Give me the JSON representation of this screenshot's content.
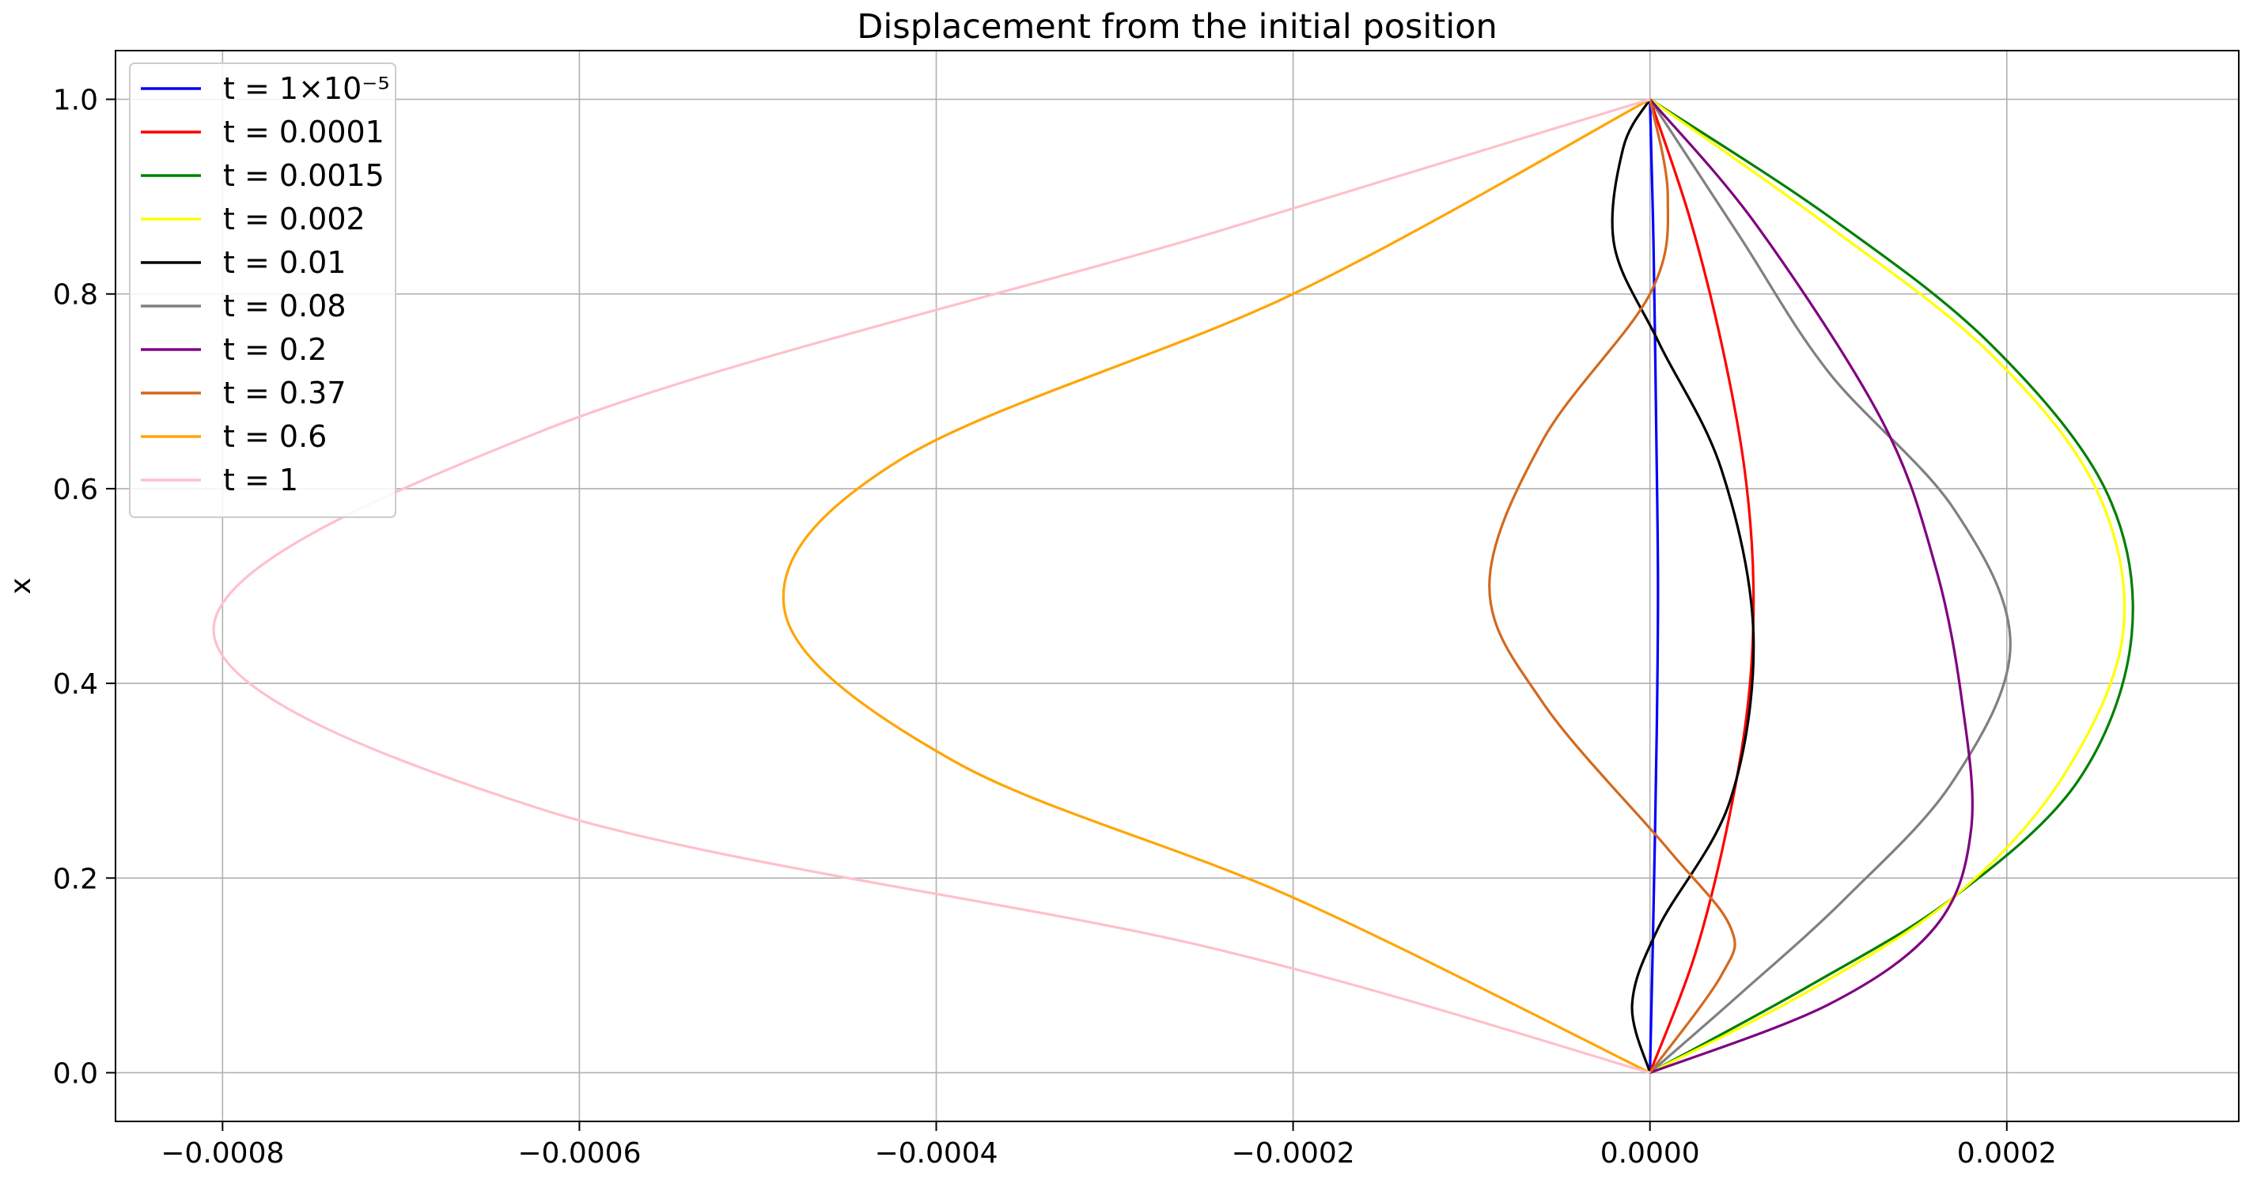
{
  "chart_data": {
    "type": "line",
    "title": "Displacement from the initial position",
    "xlabel": "",
    "ylabel": "x",
    "xlim": [
      -0.00086,
      0.00033
    ],
    "ylim": [
      -0.05,
      1.05
    ],
    "xticks": [
      -0.0008,
      -0.0006,
      -0.0004,
      -0.0002,
      0.0,
      0.0002
    ],
    "xtick_labels": [
      "−0.0008",
      "−0.0006",
      "−0.0004",
      "−0.0002",
      "0.0000",
      "0.0002"
    ],
    "yticks": [
      0.0,
      0.2,
      0.4,
      0.6,
      0.8,
      1.0
    ],
    "ytick_labels": [
      "0.0",
      "0.2",
      "0.4",
      "0.6",
      "0.8",
      "1.0"
    ],
    "grid": true,
    "legend_position": "top-left",
    "series": [
      {
        "name": "t = 1×10⁻⁵",
        "color": "#0000ff",
        "x": [
          0,
          1.8e-06,
          3.8e-06,
          4.5e-06,
          3.6e-06,
          2e-06,
          0
        ],
        "y": [
          0,
          0.15,
          0.35,
          0.5,
          0.65,
          0.85,
          1
        ]
      },
      {
        "name": "t = 0.0001",
        "color": "#ff0000",
        "x": [
          0,
          2.5e-05,
          4.3e-05,
          5.5e-05,
          5.8e-05,
          5.3e-05,
          4e-05,
          2.2e-05,
          0
        ],
        "y": [
          0,
          0.12,
          0.25,
          0.38,
          0.5,
          0.62,
          0.75,
          0.88,
          1
        ]
      },
      {
        "name": "t = 0.0015",
        "color": "#008000",
        "x": [
          0,
          9e-05,
          0.00017,
          0.00024,
          0.00027,
          0.000255,
          0.00019,
          0.0001,
          0
        ],
        "y": [
          0,
          0.09,
          0.18,
          0.3,
          0.45,
          0.6,
          0.75,
          0.88,
          1
        ]
      },
      {
        "name": "t = 0.002",
        "color": "#ffff00",
        "x": [
          0,
          9e-05,
          0.00017,
          0.00023,
          0.000265,
          0.00025,
          0.00019,
          0.0001,
          0
        ],
        "y": [
          0,
          0.085,
          0.18,
          0.3,
          0.45,
          0.6,
          0.74,
          0.87,
          1
        ]
      },
      {
        "name": "t = 0.01",
        "color": "#000000",
        "x": [
          0,
          -1e-05,
          5e-06,
          4.5e-05,
          5.8e-05,
          4e-05,
          5e-06,
          -2e-05,
          -1.5e-05,
          0
        ],
        "y": [
          0,
          0.07,
          0.15,
          0.28,
          0.45,
          0.62,
          0.75,
          0.85,
          0.95,
          1
        ]
      },
      {
        "name": "t = 0.08",
        "color": "#808080",
        "x": [
          0,
          5e-05,
          0.00011,
          0.00017,
          0.000202,
          0.00017,
          0.0001,
          5e-05,
          0
        ],
        "y": [
          0,
          0.08,
          0.18,
          0.3,
          0.44,
          0.58,
          0.72,
          0.86,
          1
        ]
      },
      {
        "name": "t = 0.2",
        "color": "#800080",
        "x": [
          0,
          0.0001,
          0.00016,
          0.00018,
          0.000175,
          0.00016,
          0.00013,
          6e-05,
          0
        ],
        "y": [
          0,
          0.07,
          0.15,
          0.25,
          0.38,
          0.52,
          0.67,
          0.87,
          1
        ]
      },
      {
        "name": "t = 0.37",
        "color": "#d2691e",
        "x": [
          0,
          4e-05,
          4.5e-05,
          1e-05,
          -6e-05,
          -9e-05,
          -6e-05,
          0,
          1e-05,
          0
        ],
        "y": [
          0,
          0.1,
          0.15,
          0.23,
          0.38,
          0.5,
          0.65,
          0.8,
          0.9,
          1
        ]
      },
      {
        "name": "t = 0.6",
        "color": "#ffa500",
        "x": [
          0,
          -0.0002,
          -0.00039,
          -0.000485,
          -0.00042,
          -0.0002,
          0
        ],
        "y": [
          0,
          0.18,
          0.32,
          0.475,
          0.63,
          0.8,
          1
        ]
      },
      {
        "name": "t = 1",
        "color": "#ffc0cb",
        "x": [
          0,
          -0.00025,
          -0.00062,
          -0.000805,
          -0.00062,
          -0.00025,
          0
        ],
        "y": [
          0,
          0.13,
          0.27,
          0.455,
          0.66,
          0.86,
          1
        ]
      }
    ]
  }
}
